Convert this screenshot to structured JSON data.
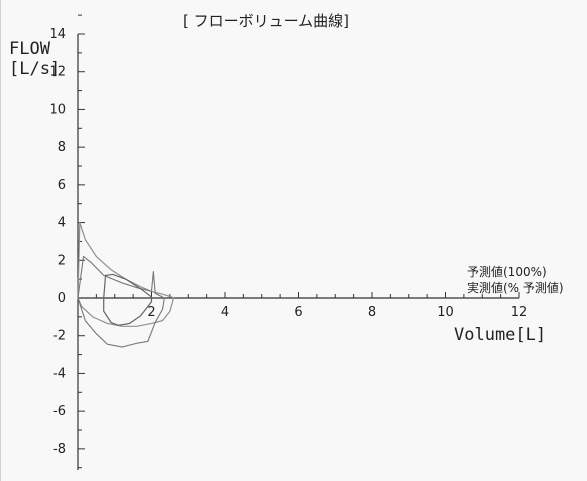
{
  "header": {
    "title": "[ フローボリューム曲線]"
  },
  "chart_data": {
    "type": "line",
    "title": "[ フローボリューム曲線]",
    "xlabel": "Volume[L]",
    "ylabel": "FLOW [L/s]",
    "ylabel_lines": [
      "FLOW",
      "[L/s]"
    ],
    "xlim": [
      0,
      12
    ],
    "ylim": [
      -9,
      15
    ],
    "xticks": [
      2,
      4,
      6,
      8,
      10,
      12
    ],
    "yticks": [
      14,
      12,
      10,
      8,
      6,
      4,
      2,
      0,
      -2,
      -4,
      -6,
      -8
    ],
    "grid": false,
    "legend_position": "right",
    "legend": [
      "予測値(100%)",
      "実測値(% 予測値)"
    ],
    "series": [
      {
        "name": "予測値(100%)",
        "points": [
          [
            0.0,
            0.0
          ],
          [
            0.05,
            4.0
          ],
          [
            0.2,
            3.1
          ],
          [
            0.5,
            2.2
          ],
          [
            0.9,
            1.5
          ],
          [
            1.3,
            1.0
          ],
          [
            1.7,
            0.6
          ],
          [
            2.0,
            0.35
          ],
          [
            2.3,
            0.2
          ],
          [
            2.55,
            0.05
          ],
          [
            2.6,
            0.0
          ],
          [
            2.5,
            -0.7
          ],
          [
            2.3,
            -1.2
          ],
          [
            2.0,
            -1.35
          ],
          [
            1.6,
            -1.5
          ],
          [
            1.2,
            -1.5
          ],
          [
            0.8,
            -1.35
          ],
          [
            0.4,
            -1.0
          ],
          [
            0.1,
            -0.45
          ],
          [
            0.0,
            0.0
          ]
        ]
      },
      {
        "name": "実測値(% 予測値)",
        "points": [
          [
            0.0,
            0.0
          ],
          [
            0.15,
            2.2
          ],
          [
            0.35,
            1.9
          ],
          [
            0.7,
            1.2
          ],
          [
            1.2,
            0.8
          ],
          [
            1.6,
            0.55
          ],
          [
            2.0,
            0.35
          ],
          [
            2.05,
            1.4
          ],
          [
            2.1,
            0.25
          ],
          [
            2.2,
            0.15
          ],
          [
            2.35,
            0.0
          ],
          [
            2.3,
            -0.6
          ],
          [
            2.1,
            -1.3
          ],
          [
            1.9,
            -2.3
          ],
          [
            1.6,
            -2.4
          ],
          [
            1.2,
            -2.6
          ],
          [
            0.8,
            -2.45
          ],
          [
            0.5,
            -1.9
          ],
          [
            0.2,
            -1.2
          ],
          [
            0.0,
            0.0
          ]
        ]
      },
      {
        "name": "",
        "points": [
          [
            0.7,
            0.0
          ],
          [
            0.75,
            1.2
          ],
          [
            0.95,
            1.25
          ],
          [
            1.3,
            1.0
          ],
          [
            1.7,
            0.5
          ],
          [
            2.0,
            0.05
          ],
          [
            2.0,
            -0.2
          ],
          [
            1.7,
            -0.95
          ],
          [
            1.4,
            -1.35
          ],
          [
            1.1,
            -1.45
          ],
          [
            0.9,
            -1.3
          ],
          [
            0.7,
            -0.7
          ],
          [
            0.7,
            0.0
          ]
        ]
      }
    ]
  }
}
